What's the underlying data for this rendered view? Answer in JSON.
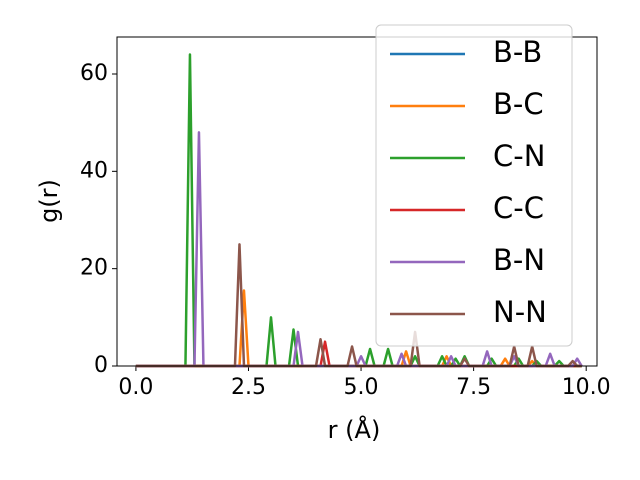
{
  "chart_data": {
    "type": "line",
    "xlabel": "r (Å)",
    "ylabel": "g(r)",
    "xlim": [
      -0.42,
      10.24
    ],
    "ylim": [
      0,
      67.6
    ],
    "xticks": [
      {
        "value": 0,
        "label": "0.0"
      },
      2.5,
      {
        "value": 5,
        "label": "5.0"
      },
      7.5,
      {
        "value": 10,
        "label": "10.0"
      }
    ],
    "yticks": [
      0,
      20,
      40,
      60
    ],
    "legend": "upper right",
    "x": [
      0,
      0.1,
      0.2,
      0.3,
      0.4,
      0.5,
      0.6,
      0.7,
      0.8,
      0.9,
      1,
      1.1,
      1.2,
      1.3,
      1.4,
      1.5,
      1.6,
      1.7,
      1.8,
      1.9,
      2,
      2.1,
      2.2,
      2.3,
      2.4,
      2.5,
      2.6,
      2.7,
      2.8,
      2.9,
      3,
      3.1,
      3.2,
      3.3,
      3.4,
      3.5,
      3.6,
      3.7,
      3.8,
      3.9,
      4,
      4.1,
      4.2,
      4.3,
      4.4,
      4.5,
      4.6,
      4.7,
      4.8,
      4.9,
      5,
      5.1,
      5.2,
      5.3,
      5.4,
      5.5,
      5.6,
      5.7,
      5.8,
      5.9,
      6,
      6.1,
      6.2,
      6.3,
      6.4,
      6.5,
      6.6,
      6.7,
      6.8,
      6.9,
      7,
      7.1,
      7.2,
      7.3,
      7.4,
      7.5,
      7.6,
      7.7,
      7.8,
      7.9,
      8,
      8.1,
      8.2,
      8.3,
      8.4,
      8.5,
      8.6,
      8.7,
      8.8,
      8.9,
      9,
      9.1,
      9.2,
      9.3,
      9.4,
      9.5,
      9.6,
      9.7,
      9.8,
      9.9
    ],
    "series": [
      {
        "name": "B-B",
        "color": "#1f77b4",
        "values": [
          0,
          0,
          0,
          0,
          0,
          0,
          0,
          0,
          0,
          0,
          0,
          0,
          0,
          0,
          0,
          0,
          0,
          0,
          0,
          0,
          0,
          0,
          0,
          0,
          0,
          0,
          0,
          0,
          0,
          0,
          0,
          0,
          0,
          0,
          0,
          0,
          0,
          0,
          0,
          0,
          0,
          0,
          0,
          0,
          0,
          0,
          0,
          0,
          0,
          0,
          0,
          0,
          0,
          0,
          0,
          0,
          0,
          0,
          0,
          0,
          0,
          0,
          0,
          0,
          0,
          0,
          0,
          0,
          0,
          0,
          0,
          0,
          0,
          0,
          0,
          0,
          0,
          0,
          0,
          0,
          0,
          0,
          0,
          0,
          0,
          0,
          0,
          0,
          0,
          0,
          0,
          0,
          0,
          0,
          0,
          0,
          0,
          0,
          0,
          0
        ]
      },
      {
        "name": "B-C",
        "color": "#ff7f0e",
        "values": [
          0,
          0,
          0,
          0,
          0,
          0,
          0,
          0,
          0,
          0,
          0,
          0,
          0,
          0,
          0,
          0,
          0,
          0,
          0,
          0,
          0,
          0,
          0,
          0,
          15.5,
          0,
          0,
          0,
          0,
          0,
          0,
          0,
          0,
          0,
          0,
          0,
          0,
          0,
          0,
          0,
          0,
          0,
          0,
          0,
          0,
          0,
          0,
          0,
          0,
          0,
          0,
          0,
          0,
          0,
          0,
          0,
          0,
          0,
          0,
          0,
          3,
          0,
          0,
          0,
          0,
          0,
          0,
          0,
          0,
          2,
          0,
          0,
          0,
          0,
          0,
          0,
          0,
          0,
          0,
          0,
          0,
          0,
          1.5,
          0,
          0,
          0,
          0,
          0,
          1,
          0,
          0,
          0,
          0,
          0,
          0,
          0,
          0,
          0,
          0,
          0
        ]
      },
      {
        "name": "C-N",
        "color": "#2ca02c",
        "values": [
          0,
          0,
          0,
          0,
          0,
          0,
          0,
          0,
          0,
          0,
          0,
          0,
          64,
          0,
          0,
          0,
          0,
          0,
          0,
          0,
          0,
          0,
          0,
          0,
          0,
          0,
          0,
          0,
          0,
          0,
          10,
          0,
          0,
          0,
          0,
          7.5,
          0,
          0,
          0,
          0,
          0,
          0,
          0,
          0,
          0,
          0,
          0,
          0,
          0,
          0,
          0,
          0,
          3.5,
          0,
          0,
          0,
          3.5,
          0,
          0,
          0,
          0,
          0,
          2,
          0,
          0,
          0,
          0,
          0,
          2,
          0,
          0,
          1.5,
          0,
          2,
          0,
          0,
          0,
          0,
          0,
          1.5,
          0,
          0,
          0,
          0,
          0,
          1.5,
          0,
          0,
          0,
          1,
          0,
          0,
          0,
          0,
          1,
          0,
          0,
          0,
          0,
          0
        ]
      },
      {
        "name": "C-C",
        "color": "#d62728",
        "values": [
          0,
          0,
          0,
          0,
          0,
          0,
          0,
          0,
          0,
          0,
          0,
          0,
          0,
          0,
          0,
          0,
          0,
          0,
          0,
          0,
          0,
          0,
          0,
          0,
          0,
          0,
          0,
          0,
          0,
          0,
          0,
          0,
          0,
          0,
          0,
          0,
          0,
          0,
          0,
          0,
          0,
          0,
          5,
          0,
          0,
          0,
          0,
          0,
          0,
          0,
          0,
          0,
          0,
          0,
          0,
          0,
          0,
          0,
          0,
          0,
          0,
          0,
          0,
          0,
          0,
          0,
          0,
          0,
          0,
          0,
          0,
          0,
          0,
          0,
          0,
          0,
          0,
          0,
          0,
          0,
          0,
          0,
          0,
          0,
          0,
          0,
          0,
          0,
          0,
          0,
          0,
          0,
          0,
          0,
          0,
          0,
          0,
          0,
          0,
          0
        ]
      },
      {
        "name": "B-N",
        "color": "#9467bd",
        "values": [
          0,
          0,
          0,
          0,
          0,
          0,
          0,
          0,
          0,
          0,
          0,
          0,
          0,
          0,
          48,
          0,
          0,
          0,
          0,
          0,
          0,
          0,
          0,
          0,
          0,
          0,
          0,
          0,
          0,
          0,
          0,
          0,
          0,
          0,
          0,
          0,
          7,
          0,
          0,
          0,
          0,
          0,
          0,
          0,
          0,
          0,
          0,
          0,
          0,
          0,
          2,
          0,
          0,
          0,
          0,
          0,
          0,
          0,
          0,
          2.5,
          0,
          0,
          0,
          0,
          0,
          0,
          0,
          0,
          0,
          0,
          2,
          0,
          0,
          0,
          0,
          0,
          0,
          0,
          3,
          0,
          0,
          0,
          0,
          0,
          2,
          0,
          0,
          0,
          0,
          0,
          0,
          0,
          2.5,
          0,
          0,
          0,
          0,
          0,
          1.5,
          0
        ]
      },
      {
        "name": "N-N",
        "color": "#8c564b",
        "values": [
          0,
          0,
          0,
          0,
          0,
          0,
          0,
          0,
          0,
          0,
          0,
          0,
          0,
          0,
          0,
          0,
          0,
          0,
          0,
          0,
          0,
          0,
          0,
          25,
          0,
          0,
          0,
          0,
          0,
          0,
          0,
          0,
          0,
          0,
          0,
          0,
          0,
          0,
          0,
          0,
          0,
          5.5,
          0,
          0,
          0,
          0,
          0,
          0,
          4,
          0,
          0,
          0,
          0,
          0,
          0,
          0,
          0,
          0,
          0,
          0,
          0,
          0,
          7,
          0,
          0,
          0,
          0,
          0,
          0,
          0,
          0,
          0,
          0,
          1.5,
          0,
          0,
          0,
          0,
          0,
          0,
          0,
          0,
          0,
          0,
          4,
          0,
          0,
          0,
          4,
          0,
          0,
          0,
          0,
          0,
          0,
          0,
          0,
          1,
          0,
          0
        ]
      }
    ]
  }
}
